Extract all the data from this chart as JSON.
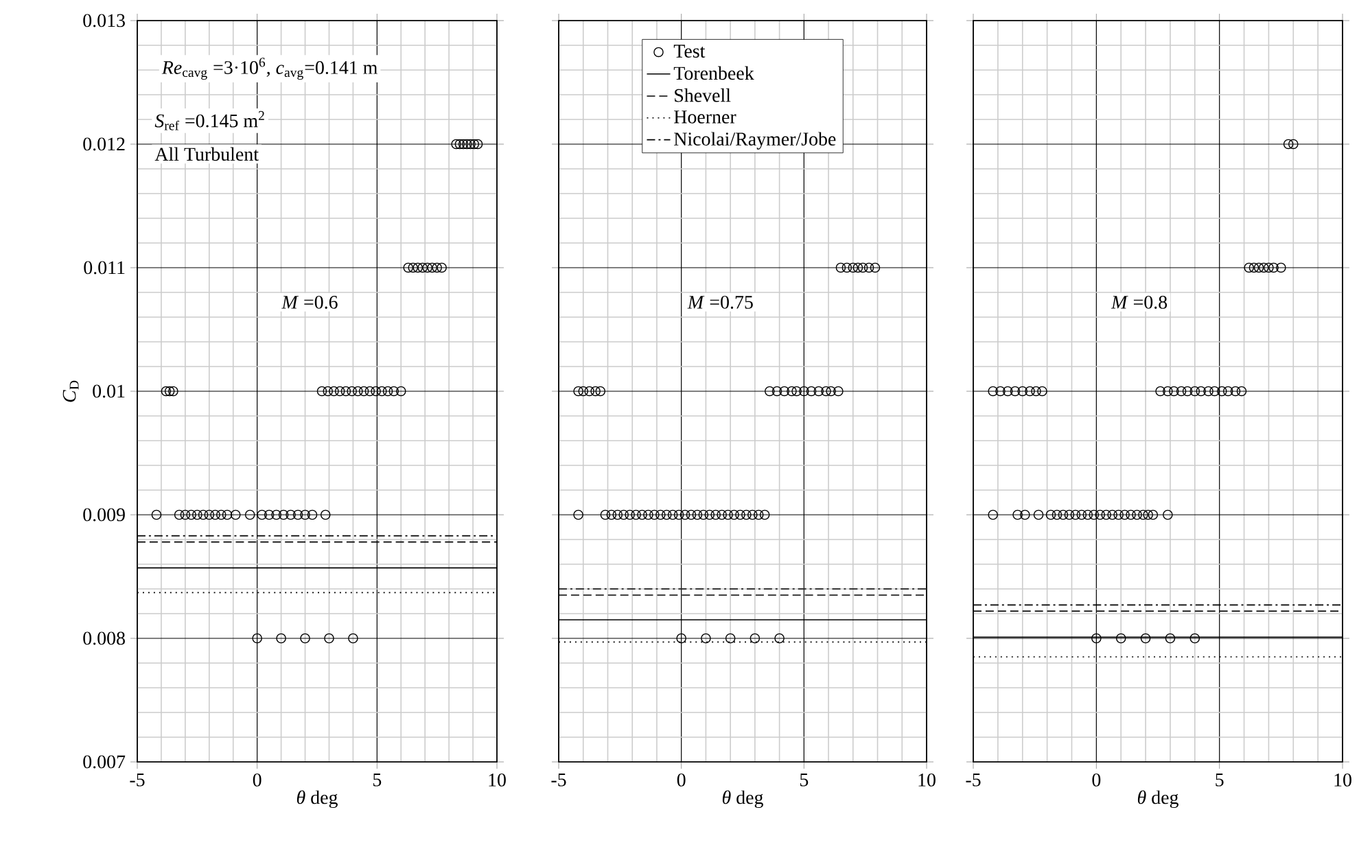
{
  "chart_data": [
    {
      "type": "scatter",
      "xlabel": "*θ* deg",
      "ylabel": "*C*$_{D}$",
      "xlim": [
        -5,
        10
      ],
      "ylim": [
        0.007,
        0.013
      ],
      "xticks": [
        -5,
        0,
        5,
        10
      ],
      "yticks": [
        0.007,
        0.008,
        0.009,
        0.01,
        0.011,
        0.012,
        0.013
      ],
      "grid": true,
      "legend": false,
      "annotations": [
        "*Re*$_{cavg}$ =3·10$^{6}$, *c*$_{avg}$=0.141 m",
        "*S*$_{ref}$ =0.145 m$^{2}$",
        "All Turbulent",
        "*M* =0.6"
      ],
      "series": [
        {
          "marker": "circle",
          "color": "#000000",
          "x": [
            8.3,
            8.45,
            8.6,
            8.75,
            8.9,
            9.05,
            9.2,
            6.3,
            6.5,
            6.7,
            6.9,
            7.1,
            7.3,
            7.5,
            7.7,
            -3.8,
            -3.65,
            -3.5,
            2.7,
            2.95,
            3.2,
            3.45,
            3.7,
            3.95,
            4.2,
            4.45,
            4.7,
            4.95,
            5.2,
            5.45,
            5.7,
            6.0,
            -4.2,
            -3.25,
            -3.0,
            -2.75,
            -2.5,
            -2.25,
            -2.0,
            -1.75,
            -1.5,
            -1.25,
            -0.9,
            -0.3,
            0.2,
            0.5,
            0.8,
            1.1,
            1.4,
            1.7,
            2.0,
            2.3,
            2.85,
            0,
            1,
            2,
            3,
            4
          ],
          "values": [
            0.012,
            0.012,
            0.012,
            0.012,
            0.012,
            0.012,
            0.012,
            0.011,
            0.011,
            0.011,
            0.011,
            0.011,
            0.011,
            0.011,
            0.011,
            0.01,
            0.01,
            0.01,
            0.01,
            0.01,
            0.01,
            0.01,
            0.01,
            0.01,
            0.01,
            0.01,
            0.01,
            0.01,
            0.01,
            0.01,
            0.01,
            0.01,
            0.009,
            0.009,
            0.009,
            0.009,
            0.009,
            0.009,
            0.009,
            0.009,
            0.009,
            0.009,
            0.009,
            0.009,
            0.009,
            0.009,
            0.009,
            0.009,
            0.009,
            0.009,
            0.009,
            0.009,
            0.009,
            0.008,
            0.008,
            0.008,
            0.008,
            0.008
          ]
        },
        {
          "type": "line",
          "line_style": "solid",
          "color": "#000000",
          "x": [
            -5,
            10
          ],
          "values": [
            0.00857,
            0.00857
          ]
        },
        {
          "type": "line",
          "line_style": "dashed",
          "color": "#000000",
          "x": [
            -5,
            10
          ],
          "values": [
            0.00878,
            0.00878
          ]
        },
        {
          "type": "line",
          "line_style": "dotted",
          "color": "#000000",
          "x": [
            -5,
            10
          ],
          "values": [
            0.00837,
            0.00837
          ]
        },
        {
          "type": "line",
          "line_style": "dashdot",
          "color": "#000000",
          "x": [
            -5,
            10
          ],
          "values": [
            0.00883,
            0.00883
          ]
        }
      ]
    },
    {
      "type": "scatter",
      "xlabel": "*θ* deg",
      "xlim": [
        -5,
        10
      ],
      "ylim": [
        0.007,
        0.013
      ],
      "xticks": [
        -5,
        0,
        5,
        10
      ],
      "yticks": [
        0.007,
        0.008,
        0.009,
        0.01,
        0.011,
        0.012,
        0.013
      ],
      "grid": true,
      "legend": "top",
      "tick_labels": "x",
      "annotations": [
        "*M* =0.75"
      ],
      "series": [
        {
          "name": "Test",
          "marker": "circle",
          "color": "#000000",
          "x": [
            6.5,
            6.75,
            7.0,
            7.2,
            7.4,
            7.65,
            7.9,
            -4.2,
            -4.0,
            -3.75,
            -3.5,
            -3.3,
            3.6,
            3.9,
            4.2,
            4.5,
            4.7,
            5.0,
            5.3,
            5.6,
            5.9,
            6.1,
            6.4,
            -4.2,
            -3.1,
            -2.85,
            -2.6,
            -2.35,
            -2.1,
            -1.85,
            -1.6,
            -1.35,
            -1.1,
            -0.85,
            -0.6,
            -0.35,
            -0.1,
            0.15,
            0.4,
            0.65,
            0.9,
            1.15,
            1.4,
            1.65,
            1.9,
            2.15,
            2.4,
            2.65,
            2.9,
            3.15,
            3.4,
            0,
            1,
            2,
            3,
            4
          ],
          "values": [
            0.011,
            0.011,
            0.011,
            0.011,
            0.011,
            0.011,
            0.011,
            0.01,
            0.01,
            0.01,
            0.01,
            0.01,
            0.01,
            0.01,
            0.01,
            0.01,
            0.01,
            0.01,
            0.01,
            0.01,
            0.01,
            0.01,
            0.01,
            0.009,
            0.009,
            0.009,
            0.009,
            0.009,
            0.009,
            0.009,
            0.009,
            0.009,
            0.009,
            0.009,
            0.009,
            0.009,
            0.009,
            0.009,
            0.009,
            0.009,
            0.009,
            0.009,
            0.009,
            0.009,
            0.009,
            0.009,
            0.009,
            0.009,
            0.009,
            0.009,
            0.009,
            0.008,
            0.008,
            0.008,
            0.008,
            0.008
          ]
        },
        {
          "type": "line",
          "name": "Torenbeek",
          "line_style": "solid",
          "color": "#000000",
          "x": [
            -5,
            10
          ],
          "values": [
            0.00815,
            0.00815
          ]
        },
        {
          "type": "line",
          "name": "Shevell",
          "line_style": "dashed",
          "color": "#000000",
          "x": [
            -5,
            10
          ],
          "values": [
            0.00835,
            0.00835
          ]
        },
        {
          "type": "line",
          "name": "Hoerner",
          "line_style": "dotted",
          "color": "#000000",
          "x": [
            -5,
            10
          ],
          "values": [
            0.00797,
            0.00797
          ]
        },
        {
          "type": "line",
          "name": "Nicolai/Raymer/Jobe",
          "line_style": "dashdot",
          "color": "#000000",
          "x": [
            -5,
            10
          ],
          "values": [
            0.0084,
            0.0084
          ]
        }
      ]
    },
    {
      "type": "scatter",
      "xlabel": "*θ* deg",
      "xlim": [
        -5,
        10
      ],
      "ylim": [
        0.007,
        0.013
      ],
      "xticks": [
        -5,
        0,
        5,
        10
      ],
      "yticks": [
        0.007,
        0.008,
        0.009,
        0.01,
        0.011,
        0.012,
        0.013
      ],
      "grid": true,
      "legend": false,
      "tick_labels": "x",
      "annotations": [
        "*M* =0.8"
      ],
      "series": [
        {
          "marker": "circle",
          "color": "#000000",
          "x": [
            7.8,
            8.0,
            6.2,
            6.4,
            6.6,
            6.8,
            7.0,
            7.2,
            7.5,
            -4.2,
            -3.9,
            -3.6,
            -3.3,
            -3.0,
            -2.7,
            -2.45,
            -2.2,
            2.6,
            2.9,
            3.15,
            3.45,
            3.7,
            4.0,
            4.25,
            4.55,
            4.8,
            5.1,
            5.35,
            5.65,
            5.9,
            -4.2,
            -3.2,
            -2.9,
            -2.35,
            -1.85,
            -1.6,
            -1.35,
            -1.1,
            -0.85,
            -0.6,
            -0.35,
            -0.1,
            0.15,
            0.4,
            0.65,
            0.9,
            1.15,
            1.4,
            1.65,
            1.9,
            2.1,
            2.3,
            2.9,
            0,
            1,
            2,
            3,
            4
          ],
          "values": [
            0.012,
            0.012,
            0.011,
            0.011,
            0.011,
            0.011,
            0.011,
            0.011,
            0.011,
            0.01,
            0.01,
            0.01,
            0.01,
            0.01,
            0.01,
            0.01,
            0.01,
            0.01,
            0.01,
            0.01,
            0.01,
            0.01,
            0.01,
            0.01,
            0.01,
            0.01,
            0.01,
            0.01,
            0.01,
            0.01,
            0.009,
            0.009,
            0.009,
            0.009,
            0.009,
            0.009,
            0.009,
            0.009,
            0.009,
            0.009,
            0.009,
            0.009,
            0.009,
            0.009,
            0.009,
            0.009,
            0.009,
            0.009,
            0.009,
            0.009,
            0.009,
            0.009,
            0.009,
            0.008,
            0.008,
            0.008,
            0.008,
            0.008
          ]
        },
        {
          "type": "line",
          "line_style": "solid",
          "color": "#000000",
          "x": [
            -5,
            10
          ],
          "values": [
            0.00801,
            0.00801
          ]
        },
        {
          "type": "line",
          "line_style": "dashed",
          "color": "#000000",
          "x": [
            -5,
            10
          ],
          "values": [
            0.00822,
            0.00822
          ]
        },
        {
          "type": "line",
          "line_style": "dotted",
          "color": "#000000",
          "x": [
            -5,
            10
          ],
          "values": [
            0.00785,
            0.00785
          ]
        },
        {
          "type": "line",
          "line_style": "dashdot",
          "color": "#000000",
          "x": [
            -5,
            10
          ],
          "values": [
            0.00827,
            0.00827
          ]
        }
      ]
    }
  ]
}
